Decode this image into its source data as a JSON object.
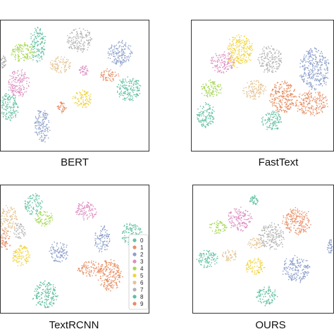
{
  "chart_data": [
    {
      "type": "scatter",
      "title": "BERT",
      "clusters": [
        {
          "label": "0",
          "cx": 0.25,
          "cy": 0.18,
          "rx": 0.05,
          "ry": 0.13
        },
        {
          "label": "0",
          "cx": 0.06,
          "cy": 0.65,
          "rx": 0.06,
          "ry": 0.11
        },
        {
          "label": "1",
          "cx": 0.73,
          "cy": 0.42,
          "rx": 0.06,
          "ry": 0.05
        },
        {
          "label": "2",
          "cx": 0.8,
          "cy": 0.25,
          "rx": 0.08,
          "ry": 0.09
        },
        {
          "label": "2",
          "cx": 0.28,
          "cy": 0.8,
          "rx": 0.05,
          "ry": 0.13
        },
        {
          "label": "3",
          "cx": 0.12,
          "cy": 0.48,
          "rx": 0.07,
          "ry": 0.1
        },
        {
          "label": "3",
          "cx": 0.56,
          "cy": 0.38,
          "rx": 0.03,
          "ry": 0.04
        },
        {
          "label": "4",
          "cx": 0.15,
          "cy": 0.24,
          "rx": 0.08,
          "ry": 0.07
        },
        {
          "label": "5",
          "cx": 0.55,
          "cy": 0.6,
          "rx": 0.06,
          "ry": 0.07
        },
        {
          "label": "6",
          "cx": 0.4,
          "cy": 0.34,
          "rx": 0.07,
          "ry": 0.06
        },
        {
          "label": "7",
          "cx": 0.53,
          "cy": 0.15,
          "rx": 0.08,
          "ry": 0.09
        },
        {
          "label": "7",
          "cx": 0.02,
          "cy": 0.32,
          "rx": 0.02,
          "ry": 0.05
        },
        {
          "label": "8",
          "cx": 0.86,
          "cy": 0.52,
          "rx": 0.08,
          "ry": 0.09
        },
        {
          "label": "9",
          "cx": 0.41,
          "cy": 0.66,
          "rx": 0.03,
          "ry": 0.04
        }
      ]
    },
    {
      "type": "scatter",
      "title": "FastText",
      "clusters": [
        {
          "label": "0",
          "cx": 0.1,
          "cy": 0.72,
          "rx": 0.06,
          "ry": 0.1
        },
        {
          "label": "1",
          "cx": 0.84,
          "cy": 0.63,
          "rx": 0.11,
          "ry": 0.09
        },
        {
          "label": "2",
          "cx": 0.86,
          "cy": 0.37,
          "rx": 0.1,
          "ry": 0.15
        },
        {
          "label": "3",
          "cx": 0.22,
          "cy": 0.32,
          "rx": 0.08,
          "ry": 0.08
        },
        {
          "label": "4",
          "cx": 0.14,
          "cy": 0.52,
          "rx": 0.08,
          "ry": 0.06
        },
        {
          "label": "5",
          "cx": 0.34,
          "cy": 0.23,
          "rx": 0.09,
          "ry": 0.12
        },
        {
          "label": "6",
          "cx": 0.44,
          "cy": 0.53,
          "rx": 0.08,
          "ry": 0.07
        },
        {
          "label": "7",
          "cx": 0.55,
          "cy": 0.3,
          "rx": 0.08,
          "ry": 0.1
        },
        {
          "label": "8",
          "cx": 0.56,
          "cy": 0.76,
          "rx": 0.07,
          "ry": 0.07
        },
        {
          "label": "9",
          "cx": 0.64,
          "cy": 0.58,
          "rx": 0.09,
          "ry": 0.12
        }
      ]
    },
    {
      "type": "scatter",
      "title": "TextRCNN",
      "legend": [
        "0",
        "1",
        "2",
        "3",
        "4",
        "5",
        "6",
        "7",
        "8",
        "9"
      ],
      "legend_position": "right",
      "clusters": [
        {
          "label": "0",
          "cx": 0.22,
          "cy": 0.15,
          "rx": 0.06,
          "ry": 0.08
        },
        {
          "label": "0",
          "cx": 0.88,
          "cy": 0.38,
          "rx": 0.07,
          "ry": 0.09
        },
        {
          "label": "1",
          "cx": 0.6,
          "cy": 0.65,
          "rx": 0.08,
          "ry": 0.06
        },
        {
          "label": "1",
          "cx": 0.03,
          "cy": 0.42,
          "rx": 0.04,
          "ry": 0.08
        },
        {
          "label": "2",
          "cx": 0.39,
          "cy": 0.52,
          "rx": 0.06,
          "ry": 0.08
        },
        {
          "label": "2",
          "cx": 0.68,
          "cy": 0.42,
          "rx": 0.05,
          "ry": 0.1
        },
        {
          "label": "3",
          "cx": 0.57,
          "cy": 0.2,
          "rx": 0.07,
          "ry": 0.07
        },
        {
          "label": "4",
          "cx": 0.29,
          "cy": 0.26,
          "rx": 0.06,
          "ry": 0.06
        },
        {
          "label": "5",
          "cx": 0.14,
          "cy": 0.55,
          "rx": 0.06,
          "ry": 0.08
        },
        {
          "label": "6",
          "cx": 0.05,
          "cy": 0.26,
          "rx": 0.06,
          "ry": 0.1
        },
        {
          "label": "7",
          "cx": 0.13,
          "cy": 0.36,
          "rx": 0.04,
          "ry": 0.06
        },
        {
          "label": "8",
          "cx": 0.3,
          "cy": 0.85,
          "rx": 0.08,
          "ry": 0.1
        },
        {
          "label": "9",
          "cx": 0.73,
          "cy": 0.7,
          "rx": 0.08,
          "ry": 0.12
        }
      ]
    },
    {
      "type": "scatter",
      "title": "OURS",
      "clusters": [
        {
          "label": "0",
          "cx": 0.1,
          "cy": 0.57,
          "rx": 0.07,
          "ry": 0.07
        },
        {
          "label": "0",
          "cx": 0.43,
          "cy": 0.12,
          "rx": 0.03,
          "ry": 0.04
        },
        {
          "label": "1",
          "cx": 0.73,
          "cy": 0.28,
          "rx": 0.1,
          "ry": 0.1
        },
        {
          "label": "2",
          "cx": 0.73,
          "cy": 0.65,
          "rx": 0.09,
          "ry": 0.1
        },
        {
          "label": "2",
          "cx": 0.97,
          "cy": 0.47,
          "rx": 0.02,
          "ry": 0.06
        },
        {
          "label": "3",
          "cx": 0.33,
          "cy": 0.26,
          "rx": 0.08,
          "ry": 0.09
        },
        {
          "label": "4",
          "cx": 0.18,
          "cy": 0.33,
          "rx": 0.06,
          "ry": 0.05
        },
        {
          "label": "5",
          "cx": 0.44,
          "cy": 0.63,
          "rx": 0.07,
          "ry": 0.06
        },
        {
          "label": "6",
          "cx": 0.26,
          "cy": 0.55,
          "rx": 0.05,
          "ry": 0.05
        },
        {
          "label": "6",
          "cx": 0.45,
          "cy": 0.45,
          "rx": 0.06,
          "ry": 0.04
        },
        {
          "label": "7",
          "cx": 0.56,
          "cy": 0.4,
          "rx": 0.09,
          "ry": 0.1
        },
        {
          "label": "8",
          "cx": 0.52,
          "cy": 0.86,
          "rx": 0.07,
          "ry": 0.07
        }
      ]
    }
  ],
  "colors": {
    "0": "#66c2a5",
    "1": "#e8926a",
    "2": "#8da0cb",
    "3": "#dd8ec2",
    "4": "#a6d854",
    "5": "#f2d43c",
    "6": "#e5c494",
    "7": "#b3b3b3",
    "8": "#5fbfa0",
    "9": "#e98c5e"
  }
}
